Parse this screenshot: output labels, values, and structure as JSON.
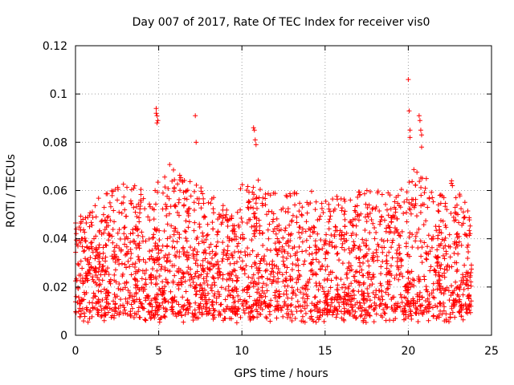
{
  "chart_data": {
    "type": "scatter",
    "title": "Day 007 of 2017, Rate Of TEC Index for receiver vis0",
    "xlabel": "GPS time / hours",
    "ylabel": "ROTI / TECUs",
    "xlim": [
      0,
      25
    ],
    "ylim": [
      0,
      0.12
    ],
    "xticks": [
      0,
      5,
      10,
      15,
      20,
      25
    ],
    "xtick_labels": [
      "0",
      "5",
      "10",
      "15",
      "20",
      "25"
    ],
    "yticks": [
      0,
      0.02,
      0.04,
      0.06,
      0.08,
      0.1,
      0.12
    ],
    "ytick_labels": [
      "0",
      "0.02",
      "0.04",
      "0.06",
      "0.08",
      "0.1",
      "0.12"
    ],
    "grid": true,
    "marker": "plus",
    "series_color": "#ff0000",
    "x_range_of_data": [
      0.0,
      23.8
    ],
    "series": [
      {
        "name": "ROTI",
        "upper_envelope": {
          "x": [
            0.0,
            1.0,
            2.0,
            3.0,
            4.0,
            4.7,
            5.5,
            6.5,
            7.5,
            8.5,
            9.5,
            10.0,
            10.6,
            11.5,
            12.5,
            13.5,
            14.5,
            15.5,
            16.5,
            17.5,
            18.5,
            19.5,
            20.0,
            20.5,
            21.5,
            22.5,
            23.5,
            23.8
          ],
          "y": [
            0.048,
            0.055,
            0.06,
            0.063,
            0.062,
            0.06,
            0.073,
            0.065,
            0.063,
            0.056,
            0.054,
            0.063,
            0.07,
            0.06,
            0.058,
            0.06,
            0.06,
            0.057,
            0.06,
            0.06,
            0.06,
            0.06,
            0.065,
            0.072,
            0.06,
            0.064,
            0.055,
            0.045
          ]
        },
        "outliers": {
          "x": [
            4.85,
            4.9,
            4.95,
            4.85,
            4.9,
            7.2,
            7.25,
            10.7,
            10.75,
            10.8,
            10.85,
            20.0,
            20.05,
            20.1,
            20.1,
            20.65,
            20.7,
            20.75,
            20.8,
            20.8,
            22.6,
            22.65
          ],
          "y": [
            0.094,
            0.091,
            0.089,
            0.092,
            0.088,
            0.091,
            0.08,
            0.086,
            0.085,
            0.081,
            0.079,
            0.106,
            0.093,
            0.085,
            0.082,
            0.091,
            0.089,
            0.085,
            0.083,
            0.078,
            0.064,
            0.062
          ]
        }
      }
    ]
  }
}
